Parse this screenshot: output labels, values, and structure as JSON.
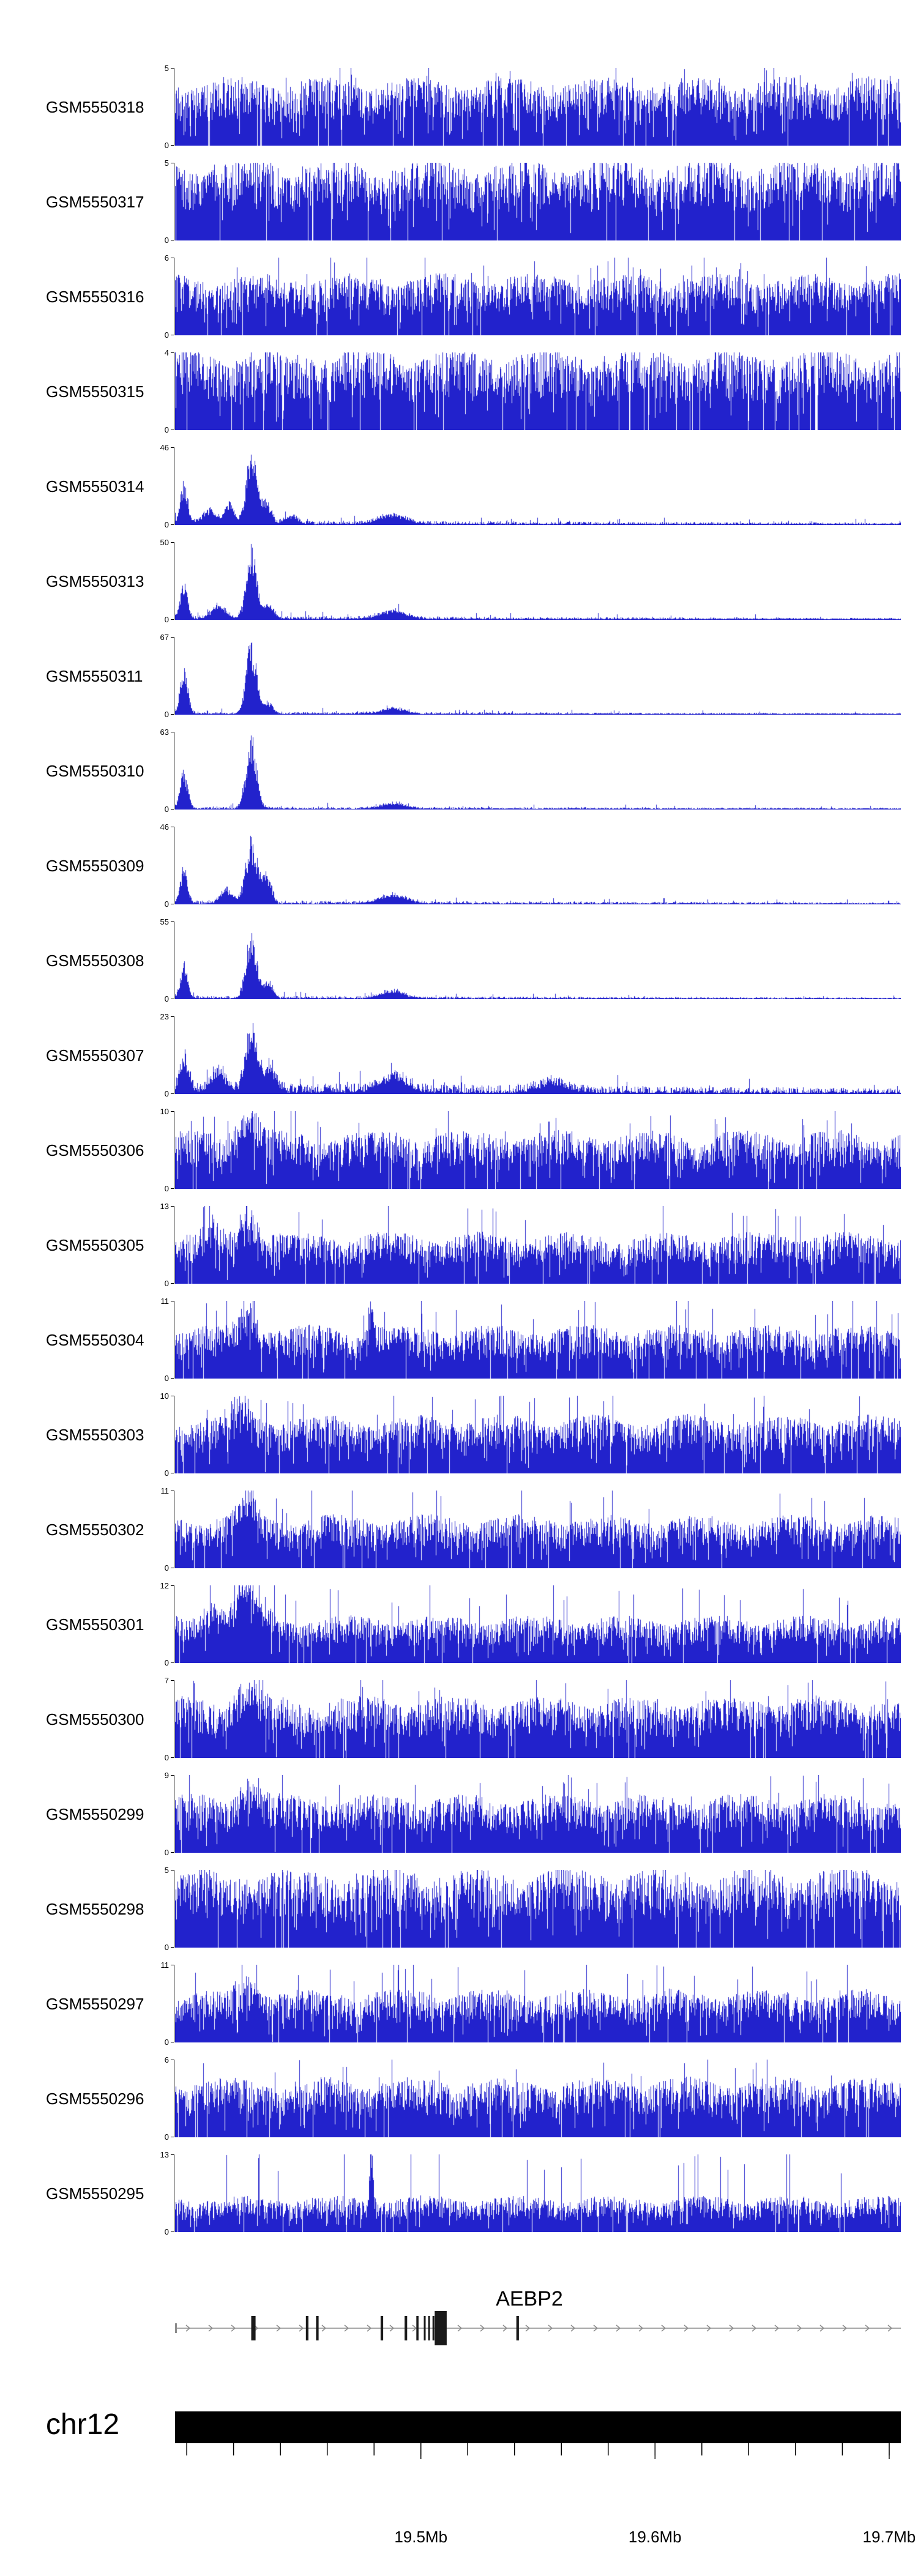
{
  "labels": {
    "chromosome": "chr12",
    "gene": "AEBP2"
  },
  "colors": {
    "signal": "#2222cc",
    "text": "#000000",
    "gene_line": "#8c8c8c",
    "exon": "#1a1a1a",
    "ideogram": "#000000"
  },
  "chart_data": {
    "type": "area",
    "description": "Genome browser coverage/signal tracks (GEO GSM samples) over the AEBP2 locus on chr12",
    "region": {
      "chromosome": "chr12",
      "start_mb": 19.395,
      "end_mb": 19.705,
      "unit": "Mb"
    },
    "x_ticks_major": [
      {
        "mb": 19.5,
        "label": "19.5Mb"
      },
      {
        "mb": 19.6,
        "label": "19.6Mb"
      },
      {
        "mb": 19.7,
        "label": "19.7Mb"
      }
    ],
    "x_tick_minor_interval_mb": 0.02,
    "y_axis": {
      "min_label": "0",
      "grid": false
    },
    "legend": "none",
    "tracks": [
      {
        "name": "GSM5550318",
        "ymin": 0,
        "ymax": 5,
        "profile": "dense",
        "fill": 0.8,
        "seed": 1,
        "peaks": []
      },
      {
        "name": "GSM5550317",
        "ymin": 0,
        "ymax": 5,
        "profile": "dense",
        "fill": 0.95,
        "seed": 2,
        "peaks": []
      },
      {
        "name": "GSM5550316",
        "ymin": 0,
        "ymax": 6,
        "profile": "dense",
        "fill": 0.72,
        "seed": 3,
        "peaks": []
      },
      {
        "name": "GSM5550315",
        "ymin": 0,
        "ymax": 4,
        "profile": "dense",
        "fill": 0.95,
        "seed": 4,
        "peaks": []
      },
      {
        "name": "GSM5550314",
        "ymin": 0,
        "ymax": 46,
        "profile": "peaked",
        "noise": 0.06,
        "seed": 5,
        "peaks": [
          {
            "x": 0.012,
            "h": 0.55,
            "w": 0.005
          },
          {
            "x": 0.048,
            "h": 0.2,
            "w": 0.01
          },
          {
            "x": 0.075,
            "h": 0.3,
            "w": 0.006
          },
          {
            "x": 0.105,
            "h": 1.0,
            "w": 0.007
          },
          {
            "x": 0.125,
            "h": 0.3,
            "w": 0.007
          },
          {
            "x": 0.16,
            "h": 0.12,
            "w": 0.008
          },
          {
            "x": 0.3,
            "h": 0.14,
            "w": 0.018
          }
        ]
      },
      {
        "name": "GSM5550313",
        "ymin": 0,
        "ymax": 50,
        "profile": "peaked",
        "noise": 0.05,
        "seed": 6,
        "peaks": [
          {
            "x": 0.012,
            "h": 0.48,
            "w": 0.005
          },
          {
            "x": 0.06,
            "h": 0.18,
            "w": 0.01
          },
          {
            "x": 0.105,
            "h": 0.97,
            "w": 0.007
          },
          {
            "x": 0.128,
            "h": 0.22,
            "w": 0.007
          },
          {
            "x": 0.3,
            "h": 0.12,
            "w": 0.018
          }
        ]
      },
      {
        "name": "GSM5550311",
        "ymin": 0,
        "ymax": 67,
        "profile": "peaked",
        "noise": 0.04,
        "seed": 7,
        "peaks": [
          {
            "x": 0.012,
            "h": 0.62,
            "w": 0.005
          },
          {
            "x": 0.105,
            "h": 1.0,
            "w": 0.007
          },
          {
            "x": 0.128,
            "h": 0.16,
            "w": 0.006
          },
          {
            "x": 0.3,
            "h": 0.08,
            "w": 0.016
          }
        ]
      },
      {
        "name": "GSM5550310",
        "ymin": 0,
        "ymax": 63,
        "profile": "peaked",
        "noise": 0.04,
        "seed": 8,
        "peaks": [
          {
            "x": 0.012,
            "h": 0.55,
            "w": 0.005
          },
          {
            "x": 0.105,
            "h": 0.95,
            "w": 0.007
          },
          {
            "x": 0.3,
            "h": 0.08,
            "w": 0.016
          }
        ]
      },
      {
        "name": "GSM5550309",
        "ymin": 0,
        "ymax": 46,
        "profile": "peaked",
        "noise": 0.05,
        "seed": 9,
        "peaks": [
          {
            "x": 0.012,
            "h": 0.5,
            "w": 0.005
          },
          {
            "x": 0.07,
            "h": 0.2,
            "w": 0.008
          },
          {
            "x": 0.105,
            "h": 0.88,
            "w": 0.008
          },
          {
            "x": 0.126,
            "h": 0.42,
            "w": 0.006
          },
          {
            "x": 0.3,
            "h": 0.13,
            "w": 0.018
          }
        ]
      },
      {
        "name": "GSM5550308",
        "ymin": 0,
        "ymax": 55,
        "profile": "peaked",
        "noise": 0.045,
        "seed": 10,
        "peaks": [
          {
            "x": 0.012,
            "h": 0.46,
            "w": 0.005
          },
          {
            "x": 0.105,
            "h": 0.95,
            "w": 0.007
          },
          {
            "x": 0.128,
            "h": 0.26,
            "w": 0.006
          },
          {
            "x": 0.3,
            "h": 0.11,
            "w": 0.016
          }
        ]
      },
      {
        "name": "GSM5550307",
        "ymin": 0,
        "ymax": 23,
        "profile": "peaked",
        "noise": 0.15,
        "seed": 11,
        "peaks": [
          {
            "x": 0.012,
            "h": 0.52,
            "w": 0.006
          },
          {
            "x": 0.06,
            "h": 0.3,
            "w": 0.01
          },
          {
            "x": 0.105,
            "h": 0.92,
            "w": 0.008
          },
          {
            "x": 0.13,
            "h": 0.36,
            "w": 0.008
          },
          {
            "x": 0.3,
            "h": 0.22,
            "w": 0.018
          },
          {
            "x": 0.52,
            "h": 0.14,
            "w": 0.02
          }
        ]
      },
      {
        "name": "GSM5550306",
        "ymin": 0,
        "ymax": 10,
        "profile": "dense",
        "fill": 0.68,
        "seed": 12,
        "peaks": [
          {
            "x": 0.1,
            "h": 0.45,
            "w": 0.014
          }
        ]
      },
      {
        "name": "GSM5550305",
        "ymin": 0,
        "ymax": 13,
        "profile": "dense",
        "fill": 0.6,
        "seed": 13,
        "peaks": [
          {
            "x": 0.052,
            "h": 0.3,
            "w": 0.01
          },
          {
            "x": 0.1,
            "h": 0.55,
            "w": 0.012
          }
        ]
      },
      {
        "name": "GSM5550304",
        "ymin": 0,
        "ymax": 11,
        "profile": "dense",
        "fill": 0.62,
        "seed": 14,
        "peaks": [
          {
            "x": 0.1,
            "h": 0.45,
            "w": 0.012
          },
          {
            "x": 0.27,
            "h": 0.5,
            "w": 0.004
          }
        ]
      },
      {
        "name": "GSM5550303",
        "ymin": 0,
        "ymax": 10,
        "profile": "dense",
        "fill": 0.68,
        "seed": 15,
        "peaks": [
          {
            "x": 0.09,
            "h": 0.4,
            "w": 0.014
          }
        ]
      },
      {
        "name": "GSM5550302",
        "ymin": 0,
        "ymax": 11,
        "profile": "dense",
        "fill": 0.62,
        "seed": 16,
        "peaks": [
          {
            "x": 0.1,
            "h": 0.45,
            "w": 0.012
          }
        ]
      },
      {
        "name": "GSM5550301",
        "ymin": 0,
        "ymax": 12,
        "profile": "dense",
        "fill": 0.55,
        "seed": 17,
        "peaks": [
          {
            "x": 0.05,
            "h": 0.3,
            "w": 0.012
          },
          {
            "x": 0.1,
            "h": 0.62,
            "w": 0.018
          }
        ]
      },
      {
        "name": "GSM5550300",
        "ymin": 0,
        "ymax": 7,
        "profile": "dense",
        "fill": 0.72,
        "seed": 18,
        "peaks": [
          {
            "x": 0.1,
            "h": 0.35,
            "w": 0.014
          }
        ]
      },
      {
        "name": "GSM5550299",
        "ymin": 0,
        "ymax": 9,
        "profile": "dense",
        "fill": 0.68,
        "seed": 19,
        "peaks": [
          {
            "x": 0.1,
            "h": 0.3,
            "w": 0.014
          }
        ]
      },
      {
        "name": "GSM5550298",
        "ymin": 0,
        "ymax": 5,
        "profile": "dense",
        "fill": 0.93,
        "seed": 20,
        "peaks": []
      },
      {
        "name": "GSM5550297",
        "ymin": 0,
        "ymax": 11,
        "profile": "dense",
        "fill": 0.62,
        "seed": 21,
        "peaks": [
          {
            "x": 0.1,
            "h": 0.3,
            "w": 0.014
          }
        ]
      },
      {
        "name": "GSM5550296",
        "ymin": 0,
        "ymax": 6,
        "profile": "dense",
        "fill": 0.7,
        "seed": 22,
        "peaks": []
      },
      {
        "name": "GSM5550295",
        "ymin": 0,
        "ymax": 13,
        "profile": "dense",
        "fill": 0.42,
        "seed": 23,
        "peaks": [
          {
            "x": 0.27,
            "h": 1.0,
            "w": 0.0025
          }
        ]
      }
    ],
    "gene_track": {
      "gene": "AEBP2",
      "strand": "+",
      "exons": [
        {
          "x": 0.108,
          "w": 0.006,
          "tall": false
        },
        {
          "x": 0.182,
          "w": 0.0035,
          "tall": false
        },
        {
          "x": 0.196,
          "w": 0.0035,
          "tall": false
        },
        {
          "x": 0.285,
          "w": 0.0035,
          "tall": false
        },
        {
          "x": 0.318,
          "w": 0.0035,
          "tall": false
        },
        {
          "x": 0.334,
          "w": 0.003,
          "tall": false
        },
        {
          "x": 0.344,
          "w": 0.0025,
          "tall": false
        },
        {
          "x": 0.35,
          "w": 0.0025,
          "tall": false
        },
        {
          "x": 0.356,
          "w": 0.0025,
          "tall": false
        },
        {
          "x": 0.366,
          "w": 0.0165,
          "tall": true
        },
        {
          "x": 0.472,
          "w": 0.0035,
          "tall": false
        }
      ]
    }
  }
}
